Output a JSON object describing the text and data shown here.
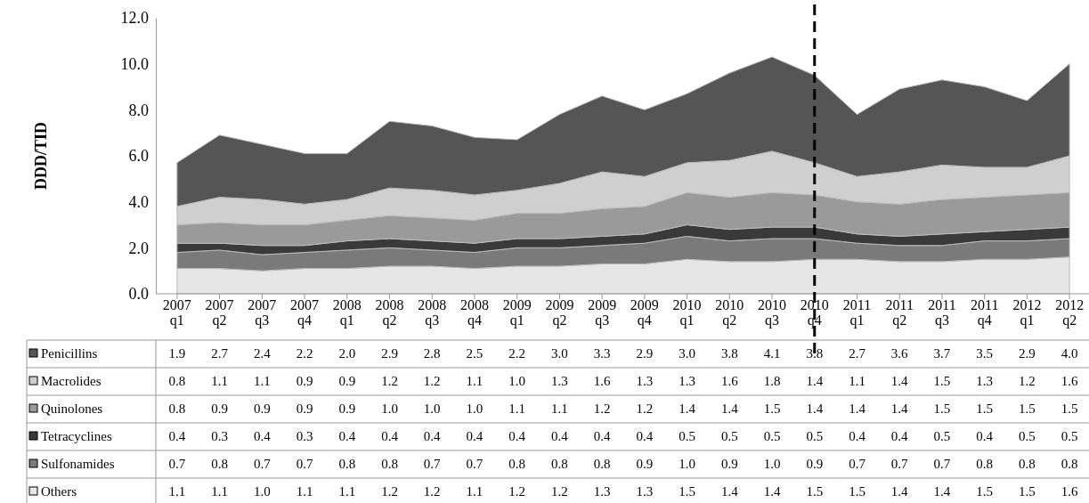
{
  "chart_data": {
    "type": "area",
    "stacked": true,
    "ylabel": "DDD/TID",
    "categories": [
      "2007 q1",
      "2007 q2",
      "2007 q3",
      "2007 q4",
      "2008 q1",
      "2008 q2",
      "2008 q3",
      "2008 q4",
      "2009 q1",
      "2009 q2",
      "2009 q3",
      "2009 q4",
      "2010 q1",
      "2010 q2",
      "2010 q3",
      "2010 q4",
      "2011 q1",
      "2011 q2",
      "2011 q3",
      "2011 q4",
      "2012 q1",
      "2012 q2"
    ],
    "series": [
      {
        "name": "Others",
        "color": "#e6e6e6",
        "values": [
          1.1,
          1.1,
          1.0,
          1.1,
          1.1,
          1.2,
          1.2,
          1.1,
          1.2,
          1.2,
          1.3,
          1.3,
          1.5,
          1.4,
          1.4,
          1.5,
          1.5,
          1.4,
          1.4,
          1.5,
          1.5,
          1.6
        ],
        "value_labels": [
          "1.1",
          "1.1",
          "1.0",
          "1.1",
          "1.1",
          "1.2",
          "1.2",
          "1.1",
          "1.2",
          "1.2",
          "1.3",
          "1.3",
          "1.5",
          "1.4",
          "1.4",
          "1.5",
          "1.5",
          "1.4",
          "1.4",
          "1.5",
          "1.5",
          "1.6"
        ]
      },
      {
        "name": "Sulfonamides",
        "color": "#7a7a7a",
        "values": [
          0.7,
          0.8,
          0.7,
          0.7,
          0.8,
          0.8,
          0.7,
          0.7,
          0.8,
          0.8,
          0.8,
          0.9,
          1.0,
          0.9,
          1.0,
          0.9,
          0.7,
          0.7,
          0.7,
          0.8,
          0.8,
          0.8
        ],
        "value_labels": [
          "0.7",
          "0.8",
          "0.7",
          "0.7",
          "0.8",
          "0.8",
          "0.7",
          "0.7",
          "0.8",
          "0.8",
          "0.8",
          "0.9",
          "1.0",
          "0.9",
          "1.0",
          "0.9",
          "0.7",
          "0.7",
          "0.7",
          "0.8",
          "0.8",
          "0.8"
        ]
      },
      {
        "name": "Tetracyclines",
        "color": "#3a3a3a",
        "values": [
          0.4,
          0.3,
          0.4,
          0.3,
          0.4,
          0.4,
          0.4,
          0.4,
          0.4,
          0.4,
          0.4,
          0.4,
          0.5,
          0.5,
          0.5,
          0.5,
          0.4,
          0.4,
          0.5,
          0.4,
          0.5,
          0.5
        ],
        "value_labels": [
          "0.4",
          "0.3",
          "0.4",
          "0.3",
          "0.4",
          "0.4",
          "0.4",
          "0.4",
          "0.4",
          "0.4",
          "0.4",
          "0.4",
          "0.5",
          "0.5",
          "0.5",
          "0.5",
          "0.4",
          "0.4",
          "0.5",
          "0.4",
          "0.5",
          "0.5"
        ]
      },
      {
        "name": "Quinolones",
        "color": "#9a9a9a",
        "values": [
          0.8,
          0.9,
          0.9,
          0.9,
          0.9,
          1.0,
          1.0,
          1.0,
          1.1,
          1.1,
          1.2,
          1.2,
          1.4,
          1.4,
          1.5,
          1.4,
          1.4,
          1.4,
          1.5,
          1.5,
          1.5,
          1.5
        ],
        "value_labels": [
          "0.8",
          "0.9",
          "0.9",
          "0.9",
          "0.9",
          "1.0",
          "1.0",
          "1.0",
          "1.1",
          "1.1",
          "1.2",
          "1.2",
          "1.4",
          "1.4",
          "1.5",
          "1.4",
          "1.4",
          "1.4",
          "1.5",
          "1.5",
          "1.5",
          "1.5"
        ]
      },
      {
        "name": "Macrolides",
        "color": "#cfcfcf",
        "values": [
          0.8,
          1.1,
          1.1,
          0.9,
          0.9,
          1.2,
          1.2,
          1.1,
          1.0,
          1.3,
          1.6,
          1.3,
          1.3,
          1.6,
          1.8,
          1.4,
          1.1,
          1.4,
          1.5,
          1.3,
          1.2,
          1.6
        ],
        "value_labels": [
          "0.8",
          "1.1",
          "1.1",
          "0.9",
          "0.9",
          "1.2",
          "1.2",
          "1.1",
          "1.0",
          "1.3",
          "1.6",
          "1.3",
          "1.3",
          "1.6",
          "1.8",
          "1.4",
          "1.1",
          "1.4",
          "1.5",
          "1.3",
          "1.2",
          "1.6"
        ]
      },
      {
        "name": "Penicillins",
        "color": "#555555",
        "values": [
          1.9,
          2.7,
          2.4,
          2.2,
          2.0,
          2.9,
          2.8,
          2.5,
          2.2,
          3.0,
          3.3,
          2.9,
          3.0,
          3.8,
          4.1,
          3.8,
          2.7,
          3.6,
          3.7,
          3.5,
          2.9,
          4.0
        ],
        "value_labels": [
          "1.9",
          "2.7",
          "2.4",
          "2.2",
          "2.0",
          "2.9",
          "2.8",
          "2.5",
          "2.2",
          "3.0",
          "3.3",
          "2.9",
          "3.0",
          "3.8",
          "4.1",
          "3.8",
          "2.7",
          "3.6",
          "3.7",
          "3.5",
          "2.9",
          "4.0"
        ]
      }
    ],
    "ylim": [
      0,
      12
    ],
    "yticks": [
      {
        "value": 0,
        "label": "0.0"
      },
      {
        "value": 2,
        "label": "2.0"
      },
      {
        "value": 4,
        "label": "4.0"
      },
      {
        "value": 6,
        "label": "6.0"
      },
      {
        "value": 8,
        "label": "8.0"
      },
      {
        "value": 10,
        "label": "10.0"
      },
      {
        "value": 12,
        "label": "12.0"
      }
    ],
    "ref_lines": [
      {
        "axis": "x",
        "value": "2010 q4",
        "color": "#000000",
        "line_style": "dashed"
      }
    ],
    "legend": "bottom",
    "grid": false
  }
}
